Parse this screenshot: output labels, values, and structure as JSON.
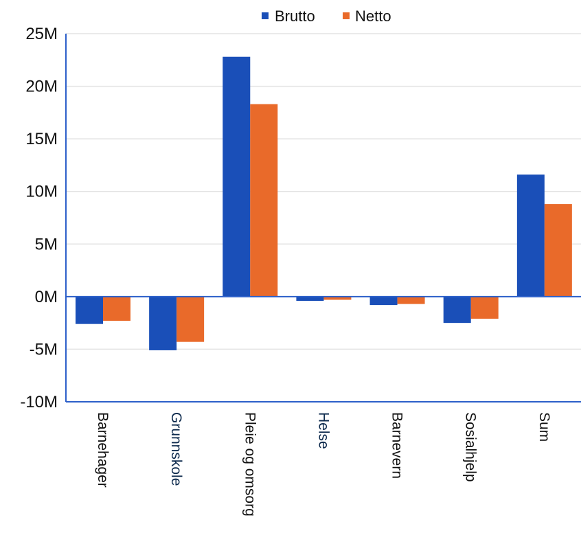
{
  "chart_data": {
    "type": "bar",
    "categories": [
      "Barnehager",
      "Grunnskole",
      "Pleie og omsorg",
      "Helse",
      "Barnevern",
      "Sosialhjelp",
      "Sum"
    ],
    "category_colors": [
      "#111111",
      "#0d2a4d",
      "#111111",
      "#0d2a4d",
      "#111111",
      "#111111",
      "#111111"
    ],
    "series": [
      {
        "name": "Brutto",
        "color": "#1a4fb8",
        "values": [
          -2.6,
          -5.1,
          22.8,
          -0.4,
          -0.8,
          -2.5,
          11.6
        ]
      },
      {
        "name": "Netto",
        "color": "#e96a2a",
        "values": [
          -2.3,
          -4.3,
          18.3,
          -0.3,
          -0.7,
          -2.1,
          8.8
        ]
      }
    ],
    "ylim": [
      -10,
      25
    ],
    "ytick_values": [
      25,
      20,
      15,
      10,
      5,
      0,
      -5,
      -10
    ],
    "ytick_labels": [
      "25M",
      "20M",
      "15M",
      "10M",
      "5M",
      "0M",
      "-5M",
      "-10M"
    ],
    "grid": true,
    "legend_position": "top-center",
    "zero_line_color": "#2c5fc9",
    "axis_color": "#2c5fc9",
    "grid_color": "#e3e3e3"
  }
}
